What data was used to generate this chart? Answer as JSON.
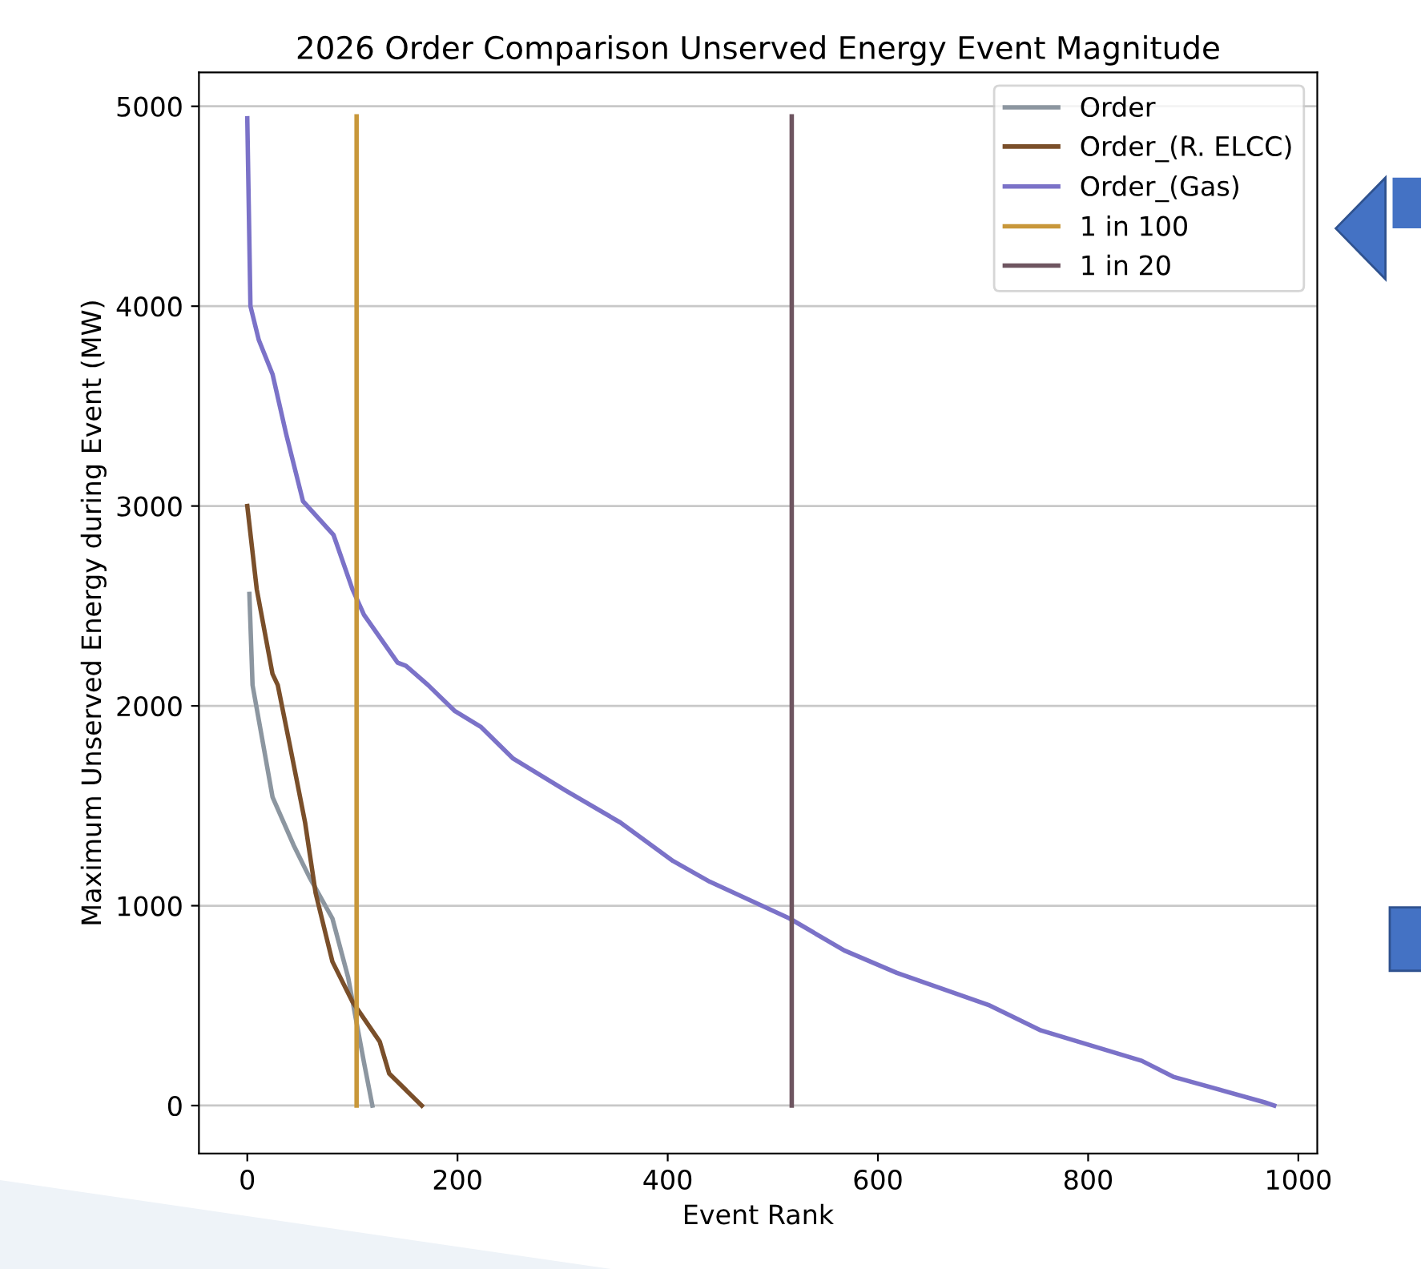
{
  "chart_data": {
    "type": "line",
    "title": "2026 Order Comparison Unserved Energy Event Magnitude",
    "xlabel": "Event Rank",
    "ylabel": "Maximum Unserved Energy during Event (MW)",
    "series": [
      {
        "name": "Order",
        "color": "#8c96a0",
        "x": [
          2,
          5,
          14,
          24,
          44,
          59,
          81,
          96,
          111,
          119
        ],
        "values": [
          2560,
          2104,
          1840,
          1544,
          1304,
          1144,
          936,
          640,
          216,
          0
        ]
      },
      {
        "name": "Order_(R. ELCC)",
        "color": "#7a4f2a",
        "x": [
          0,
          9,
          24,
          29,
          40,
          55,
          65,
          81,
          100,
          126,
          135,
          166
        ],
        "values": [
          3000,
          2584,
          2160,
          2104,
          1816,
          1416,
          1064,
          720,
          520,
          320,
          160,
          0
        ]
      },
      {
        "name": "Order_(Gas)",
        "color": "#7b72c8",
        "x": [
          0,
          3,
          11,
          24,
          37,
          53,
          82,
          100,
          111,
          143,
          151,
          172,
          197,
          222,
          253,
          303,
          355,
          405,
          440,
          516,
          568,
          618,
          705,
          755,
          851,
          881,
          968,
          977
        ],
        "values": [
          4940,
          4000,
          3830,
          3660,
          3360,
          3024,
          2856,
          2584,
          2456,
          2216,
          2200,
          2104,
          1976,
          1896,
          1736,
          1576,
          1416,
          1224,
          1120,
          936,
          776,
          664,
          504,
          376,
          224,
          144,
          16,
          0
        ]
      },
      {
        "name": "1 in 100",
        "color": "#c8973a",
        "x": [
          104,
          104
        ],
        "values": [
          0,
          4950
        ]
      },
      {
        "name": "1 in 20",
        "color": "#6e5560",
        "x": [
          518,
          518
        ],
        "values": [
          0,
          4950
        ]
      }
    ],
    "xlim": [
      -46,
      1018
    ],
    "ylim": [
      -240,
      5170
    ],
    "xticks": [
      0,
      200,
      400,
      600,
      800,
      1000
    ],
    "yticks": [
      0,
      1000,
      2000,
      3000,
      4000,
      5000
    ],
    "grid": "y",
    "legend": "top right",
    "marker": "none",
    "line_style": "solid"
  }
}
